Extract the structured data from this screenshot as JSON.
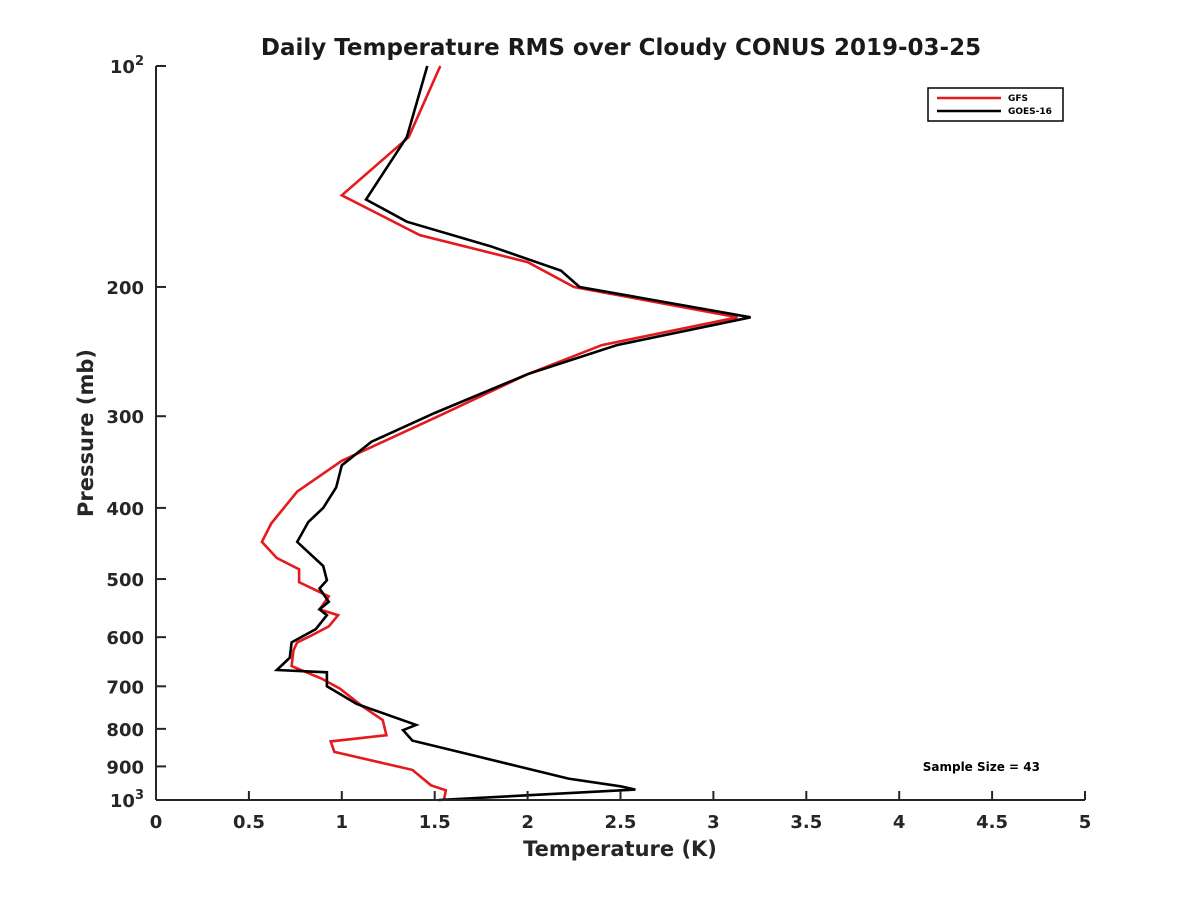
{
  "chart_data": {
    "type": "line",
    "title": "Daily Temperature RMS over Cloudy CONUS 2019-03-25",
    "xlabel": "Temperature (K)",
    "ylabel": "Pressure (mb)",
    "xlim": [
      0,
      5
    ],
    "ylim": [
      100,
      1000
    ],
    "y_scale": "log",
    "y_direction": "reversed",
    "x_ticks": [
      "0",
      "0.5",
      "1",
      "1.5",
      "2",
      "2.5",
      "3",
      "3.5",
      "4",
      "4.5",
      "5"
    ],
    "y_ticks": [
      {
        "value": 100,
        "base": "10",
        "exp": "2"
      },
      {
        "value": 200,
        "label": "200"
      },
      {
        "value": 300,
        "label": "300"
      },
      {
        "value": 400,
        "label": "400"
      },
      {
        "value": 500,
        "label": "500"
      },
      {
        "value": 600,
        "label": "600"
      },
      {
        "value": 700,
        "label": "700"
      },
      {
        "value": 800,
        "label": "800"
      },
      {
        "value": 900,
        "label": "900"
      },
      {
        "value": 1000,
        "base": "10",
        "exp": "3"
      }
    ],
    "legend_position": "top-right",
    "annotation": "Sample Size = 43",
    "series": [
      {
        "name": "GFS",
        "color": "#e41a1c",
        "points": [
          [
            1.53,
            100
          ],
          [
            1.36,
            125
          ],
          [
            1.0,
            150
          ],
          [
            1.42,
            170
          ],
          [
            2.0,
            185
          ],
          [
            2.25,
            200
          ],
          [
            3.13,
            220
          ],
          [
            2.4,
            240
          ],
          [
            2.0,
            263
          ],
          [
            1.52,
            300
          ],
          [
            1.0,
            345
          ],
          [
            0.76,
            380
          ],
          [
            0.62,
            420
          ],
          [
            0.57,
            445
          ],
          [
            0.65,
            468
          ],
          [
            0.77,
            485
          ],
          [
            0.77,
            505
          ],
          [
            0.93,
            528
          ],
          [
            0.88,
            550
          ],
          [
            0.98,
            560
          ],
          [
            0.93,
            580
          ],
          [
            0.83,
            598
          ],
          [
            0.76,
            610
          ],
          [
            0.74,
            625
          ],
          [
            0.73,
            657
          ],
          [
            0.89,
            683
          ],
          [
            0.99,
            705
          ],
          [
            1.11,
            745
          ],
          [
            1.22,
            778
          ],
          [
            1.24,
            816
          ],
          [
            0.94,
            832
          ],
          [
            0.96,
            860
          ],
          [
            1.38,
            910
          ],
          [
            1.48,
            955
          ],
          [
            1.56,
            970
          ],
          [
            1.55,
            1000
          ]
        ]
      },
      {
        "name": "GOES-16",
        "color": "#000000",
        "points": [
          [
            1.46,
            100
          ],
          [
            1.35,
            125
          ],
          [
            1.13,
            152
          ],
          [
            1.35,
            163
          ],
          [
            1.8,
            176
          ],
          [
            2.18,
            190
          ],
          [
            2.28,
            200
          ],
          [
            3.2,
            220
          ],
          [
            2.48,
            240
          ],
          [
            2.0,
            263
          ],
          [
            1.5,
            297
          ],
          [
            1.16,
            325
          ],
          [
            1.0,
            350
          ],
          [
            0.97,
            375
          ],
          [
            0.9,
            400
          ],
          [
            0.82,
            418
          ],
          [
            0.76,
            445
          ],
          [
            0.9,
            480
          ],
          [
            0.92,
            502
          ],
          [
            0.88,
            515
          ],
          [
            0.93,
            537
          ],
          [
            0.88,
            550
          ],
          [
            0.92,
            560
          ],
          [
            0.86,
            585
          ],
          [
            0.73,
            610
          ],
          [
            0.72,
            640
          ],
          [
            0.65,
            665
          ],
          [
            0.92,
            670
          ],
          [
            0.92,
            700
          ],
          [
            1.08,
            740
          ],
          [
            1.4,
            790
          ],
          [
            1.33,
            803
          ],
          [
            1.38,
            830
          ],
          [
            1.63,
            860
          ],
          [
            1.95,
            900
          ],
          [
            2.22,
            935
          ],
          [
            2.5,
            958
          ],
          [
            2.58,
            968
          ],
          [
            1.52,
            1000
          ]
        ]
      }
    ]
  }
}
